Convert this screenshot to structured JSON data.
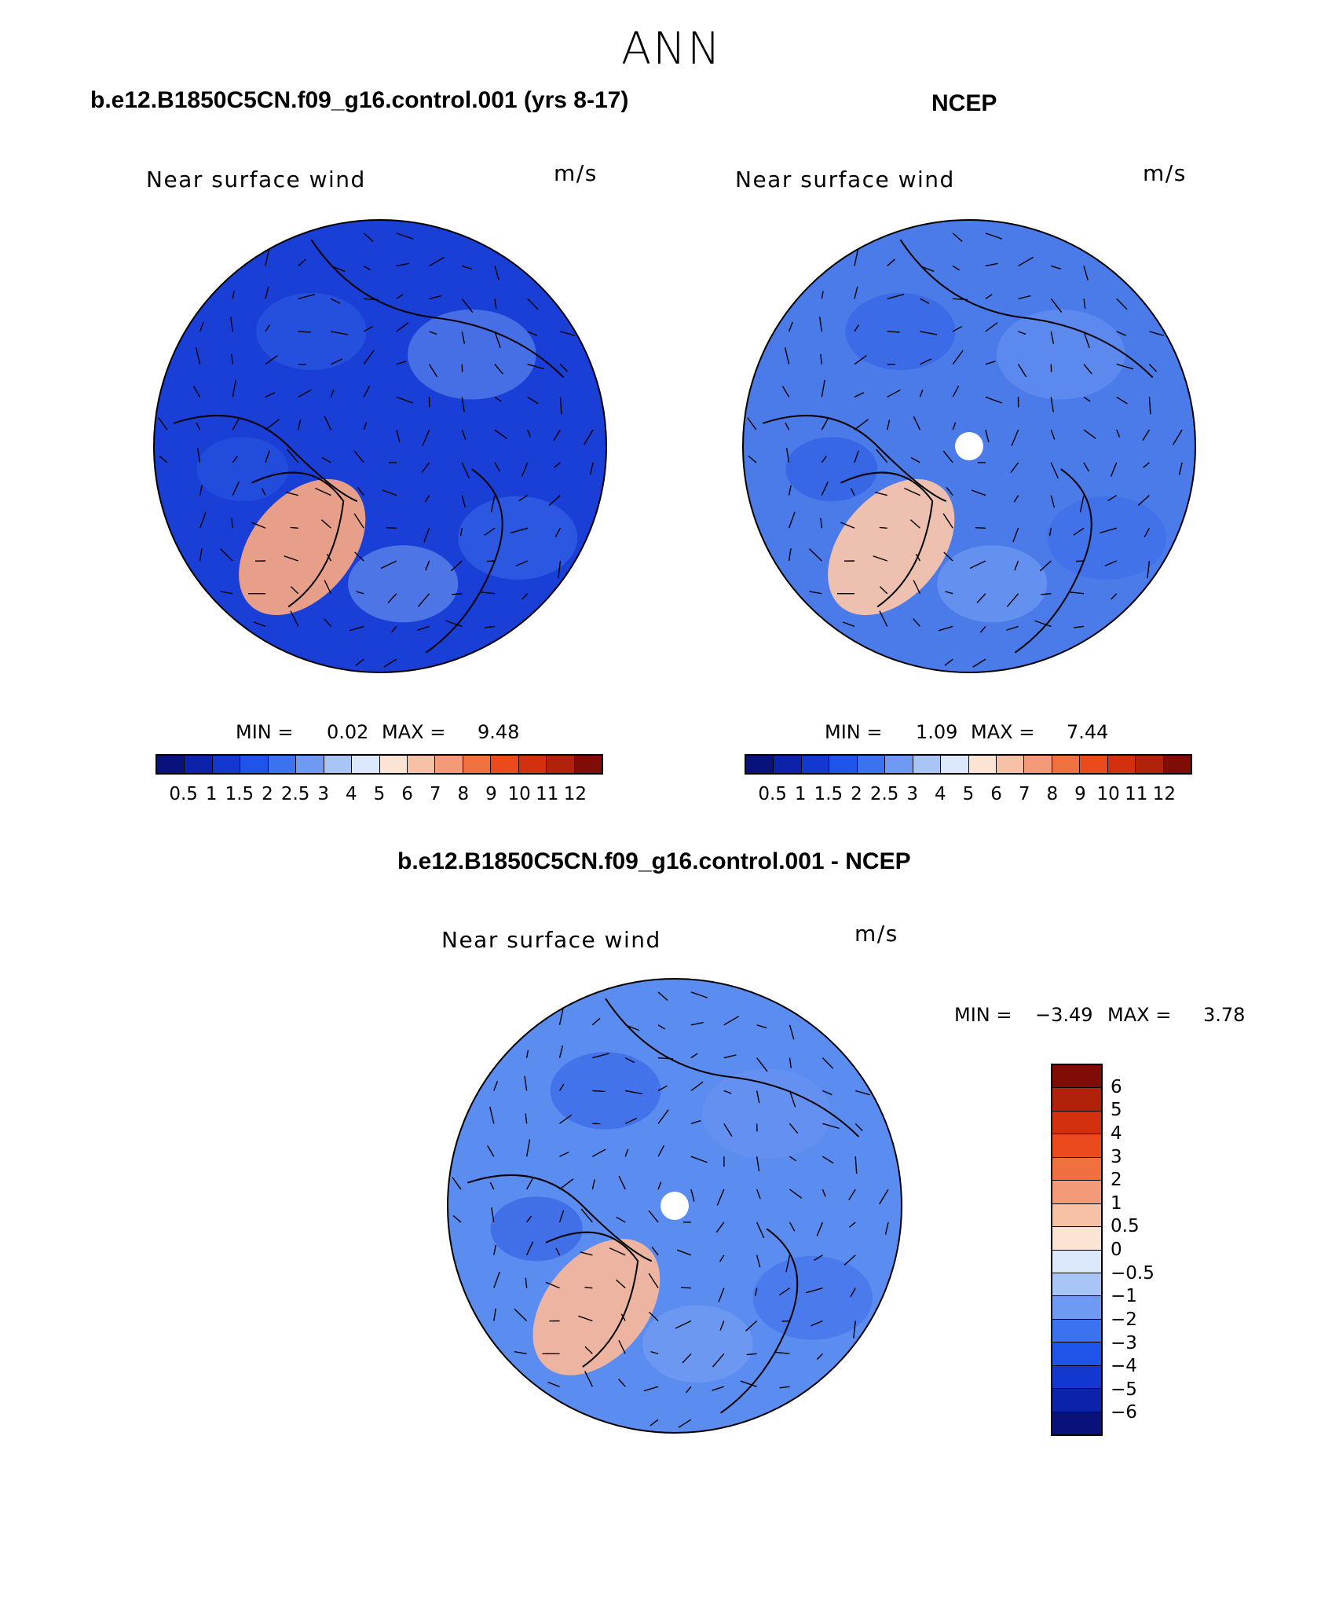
{
  "season": "ANN",
  "panels": [
    {
      "title": "b.e12.B1850C5CN.f09_g16.control.001 (yrs 8-17)",
      "variable": "Near surface wind",
      "units": "m/s",
      "min_label": "MIN =",
      "min_value": "0.02",
      "max_label": "MAX =",
      "max_value": "9.48",
      "background_color": "#1a3fd6",
      "hotspot_color": "#f3a486",
      "polar_hole": false
    },
    {
      "title": "NCEP",
      "variable": "Near surface wind",
      "units": "m/s",
      "min_label": "MIN =",
      "min_value": "1.09",
      "max_label": "MAX =",
      "max_value": "7.44",
      "background_color": "#4a7be8",
      "hotspot_color": "#f7c4ac",
      "polar_hole": true
    },
    {
      "title": "b.e12.B1850C5CN.f09_g16.control.001 - NCEP",
      "variable": "Near surface wind",
      "units": "m/s",
      "min_label": "MIN =",
      "min_value": "−3.49",
      "max_label": "MAX =",
      "max_value": "3.78",
      "background_color": "#5b8cf0",
      "hotspot_color": "#f5b79c",
      "polar_hole": true
    }
  ],
  "abs_colorbar": {
    "colors": [
      "#08127a",
      "#0a23a8",
      "#1238cf",
      "#1f54e8",
      "#3a72f0",
      "#6f9af4",
      "#a9c4f7",
      "#dbe7fb",
      "#fce4d4",
      "#f7c1a6",
      "#f39a78",
      "#f0703f",
      "#ea4a1c",
      "#d2300e",
      "#b0220a",
      "#7f0d06"
    ],
    "labels": [
      "0.5",
      "1",
      "1.5",
      "2",
      "2.5",
      "3",
      "4",
      "5",
      "6",
      "7",
      "8",
      "9",
      "10",
      "11",
      "12"
    ]
  },
  "diff_colorbar": {
    "colors": [
      "#7f0d06",
      "#b0220a",
      "#d2300e",
      "#ea4a1c",
      "#f0703f",
      "#f39a78",
      "#f7c1a6",
      "#fce4d4",
      "#dbe7fb",
      "#a9c4f7",
      "#6f9af4",
      "#3a72f0",
      "#1f54e8",
      "#1238cf",
      "#0a23a8",
      "#08127a"
    ],
    "labels": [
      "6",
      "5",
      "4",
      "3",
      "2",
      "1",
      "0.5",
      "0",
      "−0.5",
      "−1",
      "−2",
      "−3",
      "−4",
      "−5",
      "−6"
    ]
  }
}
